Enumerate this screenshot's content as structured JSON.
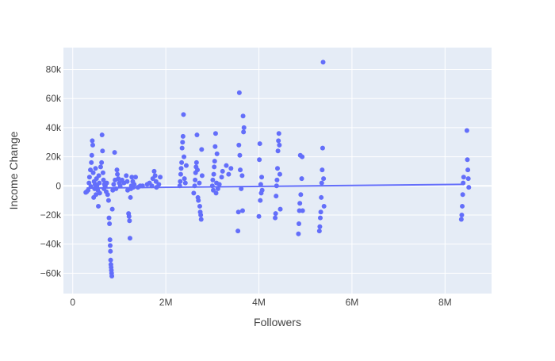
{
  "chart_data": {
    "type": "scatter",
    "xlabel": "Followers",
    "ylabel": "Income Change",
    "xlim": [
      -200000,
      9000000
    ],
    "ylim": [
      -74000,
      95000
    ],
    "grid": true,
    "x_ticks": [
      {
        "value": 0,
        "label": "0"
      },
      {
        "value": 2000000,
        "label": "2M"
      },
      {
        "value": 4000000,
        "label": "4M"
      },
      {
        "value": 6000000,
        "label": "6M"
      },
      {
        "value": 8000000,
        "label": "8M"
      }
    ],
    "y_ticks": [
      {
        "value": -60000,
        "label": "−60k"
      },
      {
        "value": -40000,
        "label": "−40k"
      },
      {
        "value": -20000,
        "label": "−20k"
      },
      {
        "value": 0,
        "label": "0"
      },
      {
        "value": 20000,
        "label": "20k"
      },
      {
        "value": 40000,
        "label": "40k"
      },
      {
        "value": 60000,
        "label": "60k"
      },
      {
        "value": 80000,
        "label": "80k"
      }
    ],
    "colors": {
      "points": "#636efa",
      "trendline": "#636efa",
      "plot_bg": "#e5ecf6",
      "grid": "#ffffff"
    },
    "trendline": {
      "x": [
        300000,
        8400000
      ],
      "y": [
        -1500,
        1000
      ]
    },
    "series": [
      {
        "points": [
          [
            280000,
            -4500
          ],
          [
            300000,
            -4000
          ],
          [
            330000,
            -3000
          ],
          [
            350000,
            2000
          ],
          [
            360000,
            6000
          ],
          [
            380000,
            11000
          ],
          [
            390000,
            -500
          ],
          [
            400000,
            16000
          ],
          [
            410000,
            21000
          ],
          [
            420000,
            31000
          ],
          [
            430000,
            28000
          ],
          [
            440000,
            9000
          ],
          [
            450000,
            -8000
          ],
          [
            460000,
            3000
          ],
          [
            470000,
            -2000
          ],
          [
            480000,
            1000
          ],
          [
            490000,
            12000
          ],
          [
            500000,
            -6000
          ],
          [
            510000,
            5000
          ],
          [
            520000,
            0
          ],
          [
            540000,
            -3000
          ],
          [
            550000,
            -14000
          ],
          [
            560000,
            7000
          ],
          [
            570000,
            2000
          ],
          [
            580000,
            -5000
          ],
          [
            600000,
            13000
          ],
          [
            620000,
            16000
          ],
          [
            630000,
            35000
          ],
          [
            640000,
            24000
          ],
          [
            650000,
            9000
          ],
          [
            660000,
            4000
          ],
          [
            670000,
            -2000
          ],
          [
            680000,
            1000
          ],
          [
            700000,
            0
          ],
          [
            720000,
            -4000
          ],
          [
            730000,
            2000
          ],
          [
            750000,
            -6000
          ],
          [
            770000,
            -10000
          ],
          [
            780000,
            -22000
          ],
          [
            790000,
            -26000
          ],
          [
            800000,
            -37000
          ],
          [
            805000,
            -41000
          ],
          [
            810000,
            -45000
          ],
          [
            815000,
            -51000
          ],
          [
            820000,
            -54000
          ],
          [
            825000,
            -56000
          ],
          [
            830000,
            -58000
          ],
          [
            835000,
            -60000
          ],
          [
            840000,
            -62000
          ],
          [
            850000,
            -16000
          ],
          [
            860000,
            -3000
          ],
          [
            880000,
            1000
          ],
          [
            900000,
            23000
          ],
          [
            910000,
            4000
          ],
          [
            930000,
            -2000
          ],
          [
            950000,
            11000
          ],
          [
            960000,
            8000
          ],
          [
            980000,
            5000
          ],
          [
            1000000,
            2000
          ],
          [
            1020000,
            0
          ],
          [
            1060000,
            4000
          ],
          [
            1100000,
            2000
          ],
          [
            1150000,
            7000
          ],
          [
            1170000,
            3000
          ],
          [
            1180000,
            -3000
          ],
          [
            1200000,
            -19000
          ],
          [
            1210000,
            -21000
          ],
          [
            1220000,
            -24000
          ],
          [
            1230000,
            -36000
          ],
          [
            1240000,
            -8000
          ],
          [
            1250000,
            -2000
          ],
          [
            1260000,
            0
          ],
          [
            1270000,
            6000
          ],
          [
            1290000,
            3000
          ],
          [
            1300000,
            -1000
          ],
          [
            1320000,
            1000
          ],
          [
            1350000,
            6000
          ],
          [
            1400000,
            -1000
          ],
          [
            1450000,
            0
          ],
          [
            1500000,
            0
          ],
          [
            1600000,
            1000
          ],
          [
            1650000,
            2000
          ],
          [
            1700000,
            0
          ],
          [
            1720000,
            5000
          ],
          [
            1750000,
            10000
          ],
          [
            1770000,
            7000
          ],
          [
            1790000,
            3000
          ],
          [
            1800000,
            -1000
          ],
          [
            1850000,
            1000
          ],
          [
            1880000,
            6000
          ],
          [
            2300000,
            0
          ],
          [
            2310000,
            3000
          ],
          [
            2320000,
            8000
          ],
          [
            2330000,
            12000
          ],
          [
            2340000,
            16000
          ],
          [
            2350000,
            26000
          ],
          [
            2360000,
            30000
          ],
          [
            2370000,
            34000
          ],
          [
            2380000,
            49000
          ],
          [
            2390000,
            20000
          ],
          [
            2400000,
            5000
          ],
          [
            2420000,
            2000
          ],
          [
            2440000,
            14000
          ],
          [
            2600000,
            -5000
          ],
          [
            2620000,
            0
          ],
          [
            2630000,
            4000
          ],
          [
            2640000,
            9000
          ],
          [
            2650000,
            13000
          ],
          [
            2660000,
            16000
          ],
          [
            2670000,
            35000
          ],
          [
            2680000,
            11000
          ],
          [
            2690000,
            -8000
          ],
          [
            2700000,
            -10000
          ],
          [
            2720000,
            2000
          ],
          [
            2730000,
            -14000
          ],
          [
            2740000,
            -18000
          ],
          [
            2750000,
            -20000
          ],
          [
            2760000,
            -23000
          ],
          [
            2770000,
            25000
          ],
          [
            2780000,
            7000
          ],
          [
            3000000,
            0
          ],
          [
            3010000,
            4000
          ],
          [
            3020000,
            -3000
          ],
          [
            3030000,
            8000
          ],
          [
            3040000,
            13000
          ],
          [
            3050000,
            17000
          ],
          [
            3060000,
            27000
          ],
          [
            3070000,
            36000
          ],
          [
            3080000,
            -5000
          ],
          [
            3090000,
            2000
          ],
          [
            3100000,
            22000
          ],
          [
            3120000,
            -2000
          ],
          [
            3150000,
            1000
          ],
          [
            3200000,
            6000
          ],
          [
            3220000,
            10000
          ],
          [
            3300000,
            14000
          ],
          [
            3350000,
            8000
          ],
          [
            3400000,
            12000
          ],
          [
            3550000,
            -31000
          ],
          [
            3560000,
            -18000
          ],
          [
            3570000,
            28000
          ],
          [
            3580000,
            64000
          ],
          [
            3590000,
            21000
          ],
          [
            3600000,
            11000
          ],
          [
            3620000,
            -2000
          ],
          [
            3640000,
            7000
          ],
          [
            3650000,
            -17000
          ],
          [
            3660000,
            48000
          ],
          [
            3670000,
            37000
          ],
          [
            3680000,
            40000
          ],
          [
            4000000,
            -21000
          ],
          [
            4010000,
            18000
          ],
          [
            4020000,
            29000
          ],
          [
            4030000,
            -10000
          ],
          [
            4040000,
            1000
          ],
          [
            4050000,
            -5000
          ],
          [
            4060000,
            6000
          ],
          [
            4070000,
            -3000
          ],
          [
            4350000,
            -22000
          ],
          [
            4360000,
            -19000
          ],
          [
            4370000,
            -7000
          ],
          [
            4380000,
            0
          ],
          [
            4390000,
            4000
          ],
          [
            4400000,
            12000
          ],
          [
            4410000,
            24000
          ],
          [
            4420000,
            31000
          ],
          [
            4430000,
            36000
          ],
          [
            4440000,
            28000
          ],
          [
            4450000,
            8000
          ],
          [
            4460000,
            -16000
          ],
          [
            4850000,
            -33000
          ],
          [
            4860000,
            -26000
          ],
          [
            4870000,
            -17000
          ],
          [
            4880000,
            -12000
          ],
          [
            4890000,
            21000
          ],
          [
            4900000,
            -6000
          ],
          [
            4920000,
            5000
          ],
          [
            4930000,
            20000
          ],
          [
            4940000,
            -17000
          ],
          [
            5300000,
            -31000
          ],
          [
            5310000,
            -28000
          ],
          [
            5320000,
            -22000
          ],
          [
            5330000,
            -18000
          ],
          [
            5340000,
            -8000
          ],
          [
            5350000,
            2000
          ],
          [
            5360000,
            11000
          ],
          [
            5370000,
            26000
          ],
          [
            5380000,
            85000
          ],
          [
            5390000,
            5000
          ],
          [
            5400000,
            -14000
          ],
          [
            8350000,
            -23000
          ],
          [
            8360000,
            -20000
          ],
          [
            8370000,
            -14000
          ],
          [
            8380000,
            -6000
          ],
          [
            8390000,
            2000
          ],
          [
            8400000,
            6000
          ],
          [
            8470000,
            38000
          ],
          [
            8480000,
            18000
          ],
          [
            8490000,
            11000
          ],
          [
            8500000,
            5000
          ],
          [
            8510000,
            -1000
          ]
        ]
      }
    ]
  }
}
